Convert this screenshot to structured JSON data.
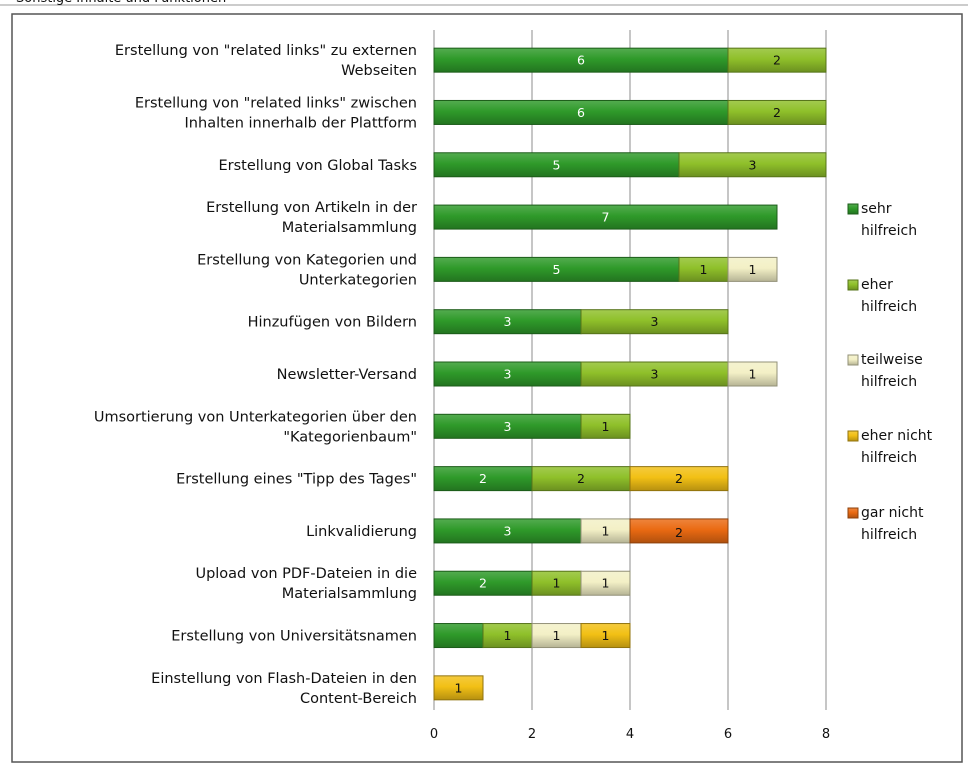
{
  "top_caption": "Sonstige Inhalte und Funktionen",
  "colors": {
    "sehr hilfreich": "#2f9a2a",
    "eher hilfreich": "#8fc02a",
    "teilweise hilfreich": "#f3f0c6",
    "eher nicht hilfreich": "#f2c015",
    "gar nicht hilfreich": "#ea6a12"
  },
  "chart_data": {
    "type": "bar",
    "orientation": "horizontal",
    "stacked": true,
    "title": "",
    "xlabel": "",
    "ylabel": "",
    "xlim": [
      0,
      8
    ],
    "xticks": [
      0,
      2,
      4,
      6,
      8
    ],
    "grid": true,
    "legend_position": "right",
    "categories": [
      "Erstellung von \"related links\" zu externen Webseiten",
      "Erstellung von \"related links\" zwischen Inhalten innerhalb der Plattform",
      "Erstellung von Global Tasks",
      "Erstellung von Artikeln in der Materialsammlung",
      "Erstellung von Kategorien und Unterkategorien",
      "Hinzufügen von Bildern",
      "Newsletter-Versand",
      "Umsortierung von Unterkategorien über den \"Kategorienbaum\"",
      "Erstellung eines \"Tipp des Tages\"",
      "Linkvalidierung",
      "Upload von PDF-Dateien in die Materialsammlung",
      "Erstellung von Universitätsnamen",
      "Einstellung von Flash-Dateien in den Content-Bereich"
    ],
    "series": [
      {
        "name": "sehr hilfreich",
        "values": [
          6,
          6,
          5,
          7,
          5,
          3,
          3,
          3,
          2,
          3,
          2,
          1,
          0
        ]
      },
      {
        "name": "eher hilfreich",
        "values": [
          2,
          2,
          3,
          0,
          1,
          3,
          3,
          1,
          2,
          0,
          1,
          1,
          0
        ]
      },
      {
        "name": "teilweise hilfreich",
        "values": [
          0,
          0,
          0,
          0,
          1,
          0,
          1,
          0,
          0,
          1,
          1,
          1,
          0
        ]
      },
      {
        "name": "eher nicht hilfreich",
        "values": [
          0,
          0,
          0,
          0,
          0,
          0,
          0,
          0,
          2,
          0,
          0,
          1,
          1
        ]
      },
      {
        "name": "gar nicht hilfreich",
        "values": [
          0,
          0,
          0,
          0,
          0,
          0,
          0,
          0,
          0,
          2,
          0,
          0,
          0
        ]
      }
    ],
    "data_labels": [
      [
        "6",
        "2",
        "",
        "",
        ""
      ],
      [
        "6",
        "2",
        "",
        "",
        ""
      ],
      [
        "5",
        "3",
        "",
        "",
        ""
      ],
      [
        "7",
        "",
        "",
        "",
        ""
      ],
      [
        "5",
        "1",
        "1",
        "",
        ""
      ],
      [
        "3",
        "3",
        "",
        "",
        ""
      ],
      [
        "3",
        "3",
        "1",
        "",
        ""
      ],
      [
        "3",
        "1",
        "",
        "",
        ""
      ],
      [
        "2",
        "2",
        "",
        "2",
        ""
      ],
      [
        "3",
        "",
        "1",
        "",
        "2"
      ],
      [
        "2",
        "1",
        "1",
        "",
        ""
      ],
      [
        "",
        "1",
        "1",
        "1",
        ""
      ],
      [
        "",
        "",
        "",
        "1",
        ""
      ]
    ]
  }
}
